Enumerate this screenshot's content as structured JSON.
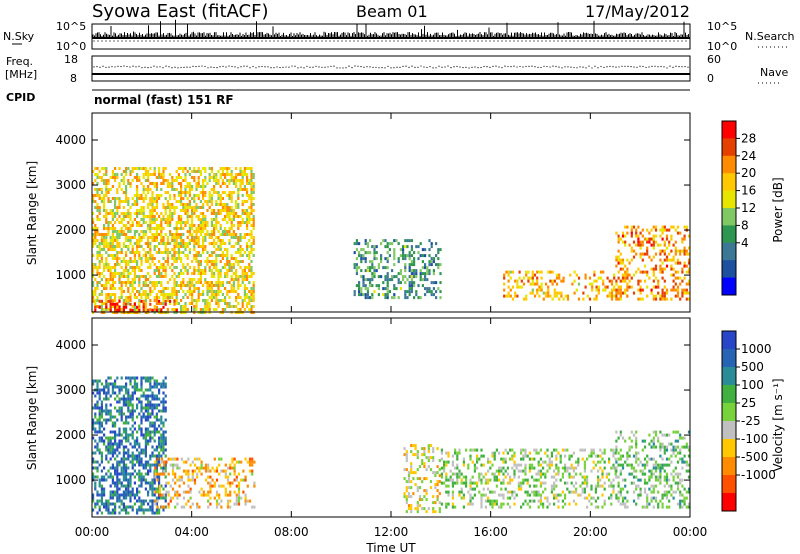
{
  "header": {
    "station": "Syowa East (fitACF)",
    "beam": "Beam 01",
    "date": "17/May/2012"
  },
  "top_panel": {
    "left_label": "N.Sky",
    "right_label": "N.Search",
    "left_ticks": [
      "10^5",
      "10^0"
    ],
    "right_ticks": [
      "10^5",
      "10^0"
    ]
  },
  "freq_panel": {
    "left_label_line1": "Freq.",
    "left_label_line2": "[MHz]",
    "right_label": "Nave",
    "left_ticks": [
      "18",
      "8"
    ],
    "right_ticks": [
      "60",
      "0"
    ]
  },
  "cpid_panel": {
    "label": "CPID",
    "program": "normal (fast) 151 RF"
  },
  "axes": {
    "xlabel": "Time UT",
    "x_ticks": [
      "00:00",
      "04:00",
      "08:00",
      "12:00",
      "16:00",
      "20:00",
      "00:00"
    ],
    "ylabel": "Slant Range [km]",
    "y_ticks": [
      "4000",
      "3000",
      "2000",
      "1000"
    ]
  },
  "power_scale": {
    "title": "Power [dB]",
    "ticks": [
      "28",
      "24",
      "20",
      "16",
      "12",
      "8",
      "4"
    ],
    "colors": [
      "#ff0000",
      "#e64000",
      "#ff8c00",
      "#ffc800",
      "#e6e600",
      "#80c864",
      "#2d9650",
      "#3c7896",
      "#1e50a0",
      "#0000ff"
    ]
  },
  "velocity_scale": {
    "title": "Velocity [m s⁻¹]",
    "ticks": [
      "1000",
      "500",
      "100",
      "25",
      "-25",
      "-100",
      "-500",
      "-1000"
    ],
    "colors": [
      "#2846c8",
      "#2864b4",
      "#2a8c96",
      "#40b040",
      "#78d23c",
      "#c0c0c0",
      "#ffc800",
      "#ff8c00",
      "#ff5000",
      "#ff0000"
    ]
  },
  "chart_data": [
    {
      "type": "heatmap",
      "panel": "power",
      "xlabel": "Time UT",
      "ylabel": "Slant Range [km]",
      "xlim": [
        0,
        24
      ],
      "ylim": [
        180,
        4600
      ],
      "colorbar": "Power [dB]",
      "colorbar_range": [
        0,
        30
      ],
      "regions": [
        {
          "x": [
            0,
            6.5
          ],
          "y": [
            200,
            3400
          ],
          "value_dB": 18
        },
        {
          "x": [
            0,
            3.5
          ],
          "y": [
            250,
            450
          ],
          "value_dB": 28
        },
        {
          "x": [
            10.5,
            14
          ],
          "y": [
            500,
            1800
          ],
          "value_dB": 10
        },
        {
          "x": [
            16.5,
            21.5
          ],
          "y": [
            500,
            1100
          ],
          "value_dB": 20
        },
        {
          "x": [
            21,
            24
          ],
          "y": [
            500,
            2100
          ],
          "value_dB": 22
        }
      ]
    },
    {
      "type": "heatmap",
      "panel": "velocity",
      "xlabel": "Time UT",
      "ylabel": "Slant Range [km]",
      "xlim": [
        0,
        24
      ],
      "ylim": [
        180,
        4600
      ],
      "colorbar": "Velocity [m s⁻¹]",
      "colorbar_range": [
        -1000,
        1000
      ],
      "regions": [
        {
          "x": [
            0,
            3
          ],
          "y": [
            250,
            3300
          ],
          "value_ms": 600
        },
        {
          "x": [
            2.5,
            6.5
          ],
          "y": [
            400,
            1500
          ],
          "value_ms": -300
        },
        {
          "x": [
            12.5,
            14
          ],
          "y": [
            300,
            1800
          ],
          "value_ms": -150
        },
        {
          "x": [
            14,
            21
          ],
          "y": [
            400,
            1700
          ],
          "value_ms": 50
        },
        {
          "x": [
            21,
            24
          ],
          "y": [
            400,
            2100
          ],
          "value_ms": 150
        }
      ]
    }
  ]
}
